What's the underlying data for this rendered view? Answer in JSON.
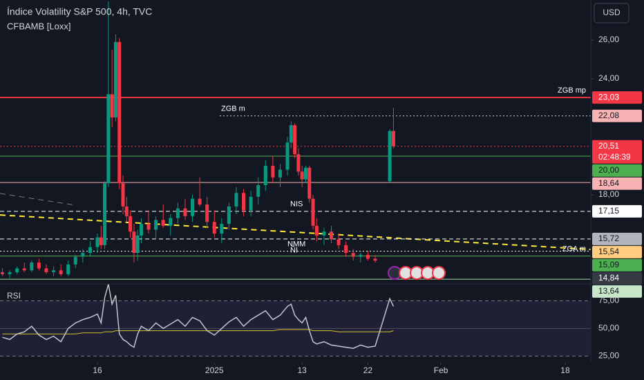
{
  "chart_data": {
    "type": "candlestick",
    "title": "Índice Volatility S&P 500, 4h, TVC",
    "subtitle": "CFBAMB [Loxx]",
    "currency": "USD",
    "up_color": "#089981",
    "down_color": "#f23645",
    "xlim": [
      2.67,
      83.5
    ],
    "xticks": [
      {
        "value": 16,
        "label": "16"
      },
      {
        "value": 32,
        "label": "2025"
      },
      {
        "value": 44,
        "label": "13"
      },
      {
        "value": 53,
        "label": "22"
      },
      {
        "value": 63,
        "label": "Feb"
      },
      {
        "value": 80,
        "label": "18"
      }
    ],
    "ylim": [
      13.43,
      28.07
    ],
    "yticks": [
      {
        "value": 26,
        "label": "26,00"
      },
      {
        "value": 24,
        "label": "24,00"
      },
      {
        "value": 18,
        "label": "18,00"
      }
    ],
    "candles": {
      "x": [
        3,
        4,
        5,
        6,
        7,
        8,
        9,
        10,
        11,
        12,
        13,
        14,
        15,
        16,
        16.5,
        17,
        17.5,
        18,
        18.5,
        19,
        19.5,
        20,
        20.5,
        21,
        21.5,
        22,
        23,
        24,
        25,
        26,
        27,
        28,
        29,
        30,
        31,
        32,
        33,
        34,
        35,
        36,
        37,
        38,
        39,
        40,
        41,
        42,
        42.5,
        43,
        43.5,
        44,
        44.5,
        45,
        45.5,
        46,
        47,
        48,
        49,
        50,
        51,
        52,
        53,
        54,
        56,
        56.5
      ],
      "open": [
        14.0,
        13.9,
        14.0,
        14.2,
        14.1,
        14.5,
        14.2,
        14.0,
        14.1,
        13.9,
        14.4,
        14.8,
        15.0,
        15.3,
        15.8,
        15.4,
        18.6,
        23.2,
        22.0,
        25.9,
        18.6,
        17.4,
        16.9,
        16.1,
        15.0,
        15.9,
        16.5,
        16.2,
        16.7,
        16.4,
        16.8,
        17.3,
        16.9,
        17.8,
        17.5,
        16.6,
        16.0,
        16.5,
        17.4,
        18.1,
        17.2,
        17.9,
        18.5,
        19.5,
        18.9,
        19.3,
        20.7,
        21.6,
        20.1,
        19.2,
        18.8,
        19.4,
        17.8,
        16.4,
        15.9,
        16.1,
        15.7,
        15.4,
        15.0,
        14.8,
        14.9,
        14.7,
        18.7,
        21.3
      ],
      "high": [
        14.2,
        14.1,
        14.3,
        14.5,
        14.6,
        14.7,
        14.4,
        14.3,
        14.4,
        14.6,
        14.9,
        15.2,
        15.6,
        16.0,
        16.4,
        18.7,
        28.0,
        25.5,
        26.3,
        26.1,
        19.0,
        17.9,
        17.2,
        16.5,
        16.2,
        16.8,
        17.2,
        16.9,
        17.5,
        17.0,
        17.6,
        17.8,
        18.0,
        18.9,
        17.9,
        17.2,
        16.8,
        17.6,
        18.4,
        18.3,
        18.2,
        18.9,
        19.8,
        20.0,
        19.6,
        21.0,
        21.8,
        21.7,
        20.4,
        19.5,
        19.5,
        19.5,
        18.0,
        16.8,
        16.3,
        16.4,
        16.0,
        15.6,
        15.2,
        15.0,
        15.1,
        14.9,
        21.4,
        22.5
      ],
      "low": [
        13.8,
        13.7,
        13.9,
        14.0,
        14.0,
        14.1,
        13.9,
        13.8,
        13.8,
        13.8,
        14.2,
        14.5,
        14.8,
        15.0,
        15.2,
        15.2,
        18.4,
        21.5,
        21.8,
        18.3,
        17.0,
        16.6,
        15.8,
        14.5,
        14.6,
        15.5,
        16.0,
        15.7,
        16.3,
        15.9,
        16.5,
        16.7,
        16.6,
        17.4,
        16.3,
        15.8,
        15.5,
        16.2,
        17.0,
        16.9,
        16.9,
        17.5,
        18.2,
        18.6,
        18.4,
        19.0,
        20.4,
        19.9,
        19.0,
        18.4,
        18.6,
        17.6,
        16.2,
        15.6,
        15.4,
        15.5,
        15.2,
        14.8,
        14.6,
        14.5,
        14.6,
        14.5,
        18.6,
        20.4
      ],
      "close": [
        13.9,
        14.0,
        14.2,
        14.1,
        14.5,
        14.2,
        14.0,
        14.1,
        13.9,
        14.4,
        14.8,
        15.0,
        15.3,
        15.8,
        15.4,
        18.6,
        23.2,
        22.0,
        25.9,
        18.6,
        17.4,
        16.9,
        16.1,
        15.0,
        15.9,
        16.5,
        16.2,
        16.7,
        16.4,
        16.8,
        17.3,
        16.9,
        17.8,
        17.5,
        16.6,
        16.0,
        16.5,
        17.4,
        18.1,
        17.2,
        17.9,
        18.5,
        19.5,
        18.9,
        19.3,
        20.7,
        21.6,
        20.1,
        19.2,
        18.8,
        19.4,
        17.8,
        16.4,
        15.9,
        16.1,
        15.7,
        15.4,
        15.0,
        14.8,
        14.9,
        14.7,
        14.6,
        21.3,
        20.51
      ]
    },
    "levels": [
      {
        "value": 23.03,
        "label": "23,03",
        "color": "#f23645",
        "style": "solid",
        "tag_color": "#f23645",
        "tag_text": "#ffffff",
        "text": "ZGB mp"
      },
      {
        "value": 22.08,
        "label": "22,08",
        "color": "#d1d4dc",
        "style": "dotted",
        "tag_color": "#f8b4b4",
        "tag_text": "#131722",
        "text": "ZGB m"
      },
      {
        "value": 20.51,
        "label": "20,51",
        "color": "#f23645",
        "style": "dotted",
        "tag_color": "#f23645",
        "tag_text": "#ffffff",
        "countdown": "02:48:39"
      },
      {
        "value": 20.0,
        "label": "20,00",
        "color": "#4caf50",
        "style": "solid",
        "tag_color": "#4caf50",
        "tag_text": "#131722"
      },
      {
        "value": 18.64,
        "label": "18,64",
        "color": "#f8b4b4",
        "style": "solid",
        "tag_color": "#f8b4b4",
        "tag_text": "#131722"
      },
      {
        "value": 17.15,
        "label": "17,15",
        "color": "#ffffff",
        "style": "dashed",
        "tag_color": "#ffffff",
        "tag_text": "#131722",
        "text": "NIS"
      },
      {
        "value": 15.72,
        "label": "15,72",
        "color": "#ffffff",
        "style": "dashed",
        "tag_color": "#b2b5be",
        "tag_text": "#131722"
      },
      {
        "value": 15.54,
        "label": "15,54",
        "color": "#ffeb3b",
        "style": "none",
        "tag_color": "#ffcc80",
        "tag_text": "#131722"
      },
      {
        "value": 15.09,
        "label": "15,09",
        "color": "#ffffff",
        "style": "dotted",
        "tag_color": "#4caf50",
        "tag_text": "#131722",
        "text": "NMM"
      },
      {
        "value": 14.84,
        "label": "14,84",
        "color": "#4caf50",
        "style": "solid",
        "tag_color": "#363a45",
        "tag_text": "#ffffff",
        "text": "ZGA m"
      },
      {
        "value": 13.64,
        "label": "13,64",
        "color": "#a5d6a7",
        "style": "solid",
        "tag_color": "#c8e6c9",
        "tag_text": "#131722"
      }
    ],
    "annotations": [
      "ÑI"
    ],
    "trendlines": [
      {
        "x": [
          2.67,
          83.5
        ],
        "y": [
          16.96,
          15.18
        ],
        "color": "#ffeb3b"
      },
      {
        "x": [
          2.67,
          13.1
        ],
        "y": [
          18.07,
          17.46
        ],
        "color": "#787b86"
      }
    ],
    "rsi": {
      "name": "RSI",
      "color": "#c3c6ce",
      "ma_color": "#d9c22e",
      "band_color": "#7e57c2",
      "ylim": [
        19,
        89
      ],
      "yticks": [
        {
          "value": 75,
          "label": "75,00"
        },
        {
          "value": 50,
          "label": "50,00"
        },
        {
          "value": 25,
          "label": "25,00"
        }
      ],
      "values": [
        42,
        40,
        45,
        47,
        52,
        44,
        40,
        43,
        38,
        50,
        55,
        58,
        60,
        63,
        55,
        78,
        90,
        72,
        80,
        45,
        40,
        38,
        35,
        33,
        45,
        52,
        48,
        55,
        50,
        54,
        58,
        52,
        60,
        57,
        48,
        44,
        50,
        56,
        60,
        52,
        58,
        62,
        66,
        58,
        62,
        70,
        72,
        62,
        58,
        55,
        60,
        48,
        38,
        36,
        38,
        35,
        34,
        33,
        32,
        35,
        33,
        34,
        77,
        70
      ],
      "ma_values": [
        45,
        45,
        45,
        45,
        45,
        45,
        45,
        45,
        45,
        45,
        45,
        46,
        46,
        46,
        46,
        47,
        47,
        47,
        48,
        48,
        48,
        48,
        48,
        48,
        48,
        48,
        48,
        48,
        48,
        48,
        48,
        48,
        48,
        48,
        48,
        48,
        48,
        48,
        48,
        48,
        48,
        48,
        48,
        48,
        49,
        49,
        49,
        49,
        49,
        49,
        49,
        49,
        48,
        48,
        48,
        48,
        47,
        47,
        47,
        47,
        47,
        47,
        47,
        48
      ]
    }
  }
}
